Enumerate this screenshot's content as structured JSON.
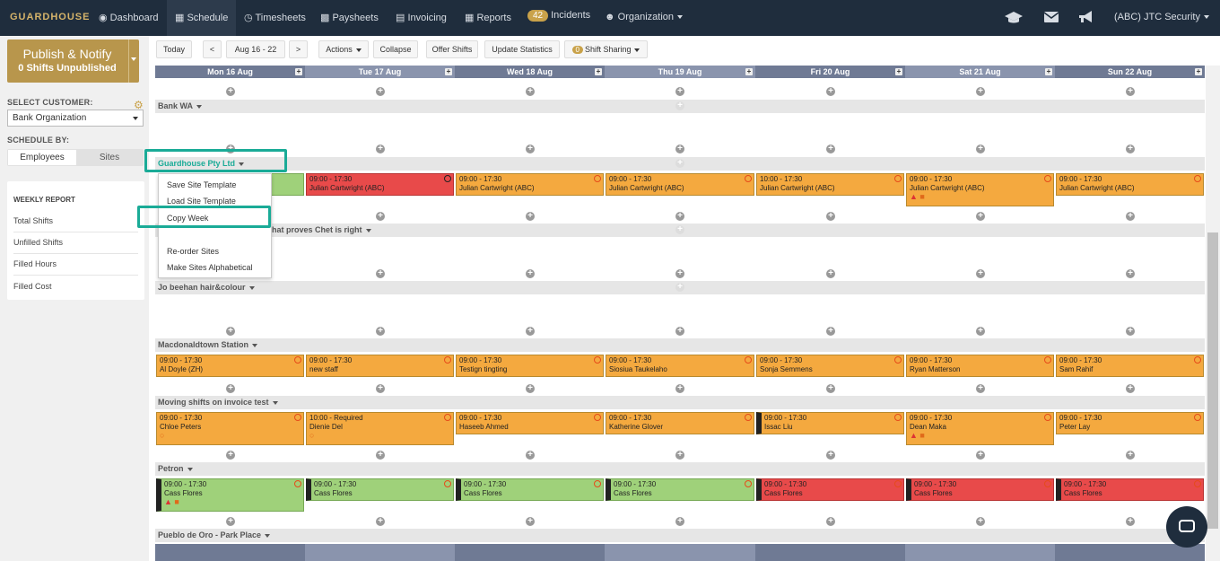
{
  "nav": {
    "logo": "GUARDHOUSE",
    "items": [
      "Dashboard",
      "Schedule",
      "Timesheets",
      "Paysheets",
      "Invoicing",
      "Reports"
    ],
    "incidents_count": "42",
    "incidents_label": "Incidents",
    "organization": "Organization",
    "account": "(ABC) JTC Security",
    "icons": [
      "dashboard-icon",
      "calendar-icon",
      "clock-icon",
      "money-icon",
      "invoice-icon",
      "table-icon",
      "users-icon",
      "graduation-cap-icon",
      "envelope-icon",
      "bullhorn-icon"
    ]
  },
  "publish": {
    "title": "Publish & Notify",
    "subtitle": "0 Shifts Unpublished"
  },
  "customer": {
    "label": "SELECT CUSTOMER:",
    "value": "Bank Organization"
  },
  "schedule_by": {
    "label": "SCHEDULE BY:",
    "employees": "Employees",
    "sites": "Sites"
  },
  "weekly_report": {
    "title": "WEEKLY REPORT",
    "items": [
      "Total Shifts",
      "Unfilled Shifts",
      "Filled Hours",
      "Filled Cost"
    ]
  },
  "toolbar": {
    "today": "Today",
    "prev": "<",
    "range": "Aug 16 - 22",
    "next": ">",
    "actions": "Actions",
    "collapse": "Collapse",
    "offer": "Offer Shifts",
    "update": "Update Statistics",
    "sharing_count": "0",
    "sharing": "Shift Sharing"
  },
  "days": [
    "Mon 16 Aug",
    "Tue 17 Aug",
    "Wed 18 Aug",
    "Thu 19 Aug",
    "Fri 20 Aug",
    "Sat 21 Aug",
    "Sun 22 Aug"
  ],
  "sites": [
    "Bank WA",
    "Guardhouse Pty Ltd",
    "hat proves Chet is right",
    "Jo beehan hair&colour",
    "Macdonaldtown Station",
    "Moving shifts on invoice test",
    "Petron",
    "Pueblo de Oro - Park Place"
  ],
  "menu": [
    "Save Site Template",
    "Load Site Template",
    "Copy Week",
    "Re-order Sites",
    "Make Sites Alphabetical"
  ],
  "shifts": {
    "guardhouse": [
      {
        "time": "09:00 - 17:30",
        "name": "Julian Cartwright (ABC)"
      },
      {
        "time": "09:00 - 17:30",
        "name": "Julian Cartwright (ABC)"
      },
      {
        "time": "09:00 - 17:30",
        "name": "Julian Cartwright (ABC)"
      },
      {
        "time": "10:00 - 17:30",
        "name": "Julian Cartwright (ABC)"
      },
      {
        "time": "09:00 - 17:30",
        "name": "Julian Cartwright (ABC)"
      },
      {
        "time": "09:00 - 17:30",
        "name": "Julian Cartwright (ABC)"
      }
    ],
    "macdonaldtown": [
      {
        "time": "09:00 - 17:30",
        "name": "Al Doyle (ZH)"
      },
      {
        "time": "09:00 - 17:30",
        "name": "new staff"
      },
      {
        "time": "09:00 - 17:30",
        "name": "Testign tingting"
      },
      {
        "time": "09:00 - 17:30",
        "name": "Siosiua Taukelaho"
      },
      {
        "time": "09:00 - 17:30",
        "name": "Sonja Semmens"
      },
      {
        "time": "09:00 - 17:30",
        "name": "Ryan Matterson"
      },
      {
        "time": "09:00 - 17:30",
        "name": "Sam Rahif"
      }
    ],
    "moving": [
      {
        "time": "09:00 - 17:30",
        "name": "Chloe Peters"
      },
      {
        "time": "10:00 - Required",
        "name": "Dienie Del"
      },
      {
        "time": "09:00 - 17:30",
        "name": "Haseeb Ahmed"
      },
      {
        "time": "09:00 - 17:30",
        "name": "Katherine Glover"
      },
      {
        "time": "09:00 - 17:30",
        "name": "Issac Liu"
      },
      {
        "time": "09:00 - 17:30",
        "name": "Dean Maka"
      },
      {
        "time": "09:00 - 17:30",
        "name": "Peter Lay"
      }
    ],
    "petron": [
      {
        "time": "09:00 - 17:30",
        "name": "Cass Flores"
      },
      {
        "time": "09:00 - 17:30",
        "name": "Cass Flores"
      },
      {
        "time": "09:00 - 17:30",
        "name": "Cass Flores"
      },
      {
        "time": "09:00 - 17:30",
        "name": "Cass Flores"
      },
      {
        "time": "09:00 - 17:30",
        "name": "Cass Flores"
      },
      {
        "time": "09:00 - 17:30",
        "name": "Cass Flores"
      },
      {
        "time": "09:00 - 17:30",
        "name": "Cass Flores"
      }
    ]
  },
  "colors": {
    "nav": "#1f2d3d",
    "gold": "#b8964c",
    "orange": "#f4a93f",
    "red": "#e84a4a",
    "green": "#9fd17a",
    "highlight": "#1aab97",
    "day_header_a": "#6f7a94",
    "day_header_b": "#8a94ad"
  }
}
